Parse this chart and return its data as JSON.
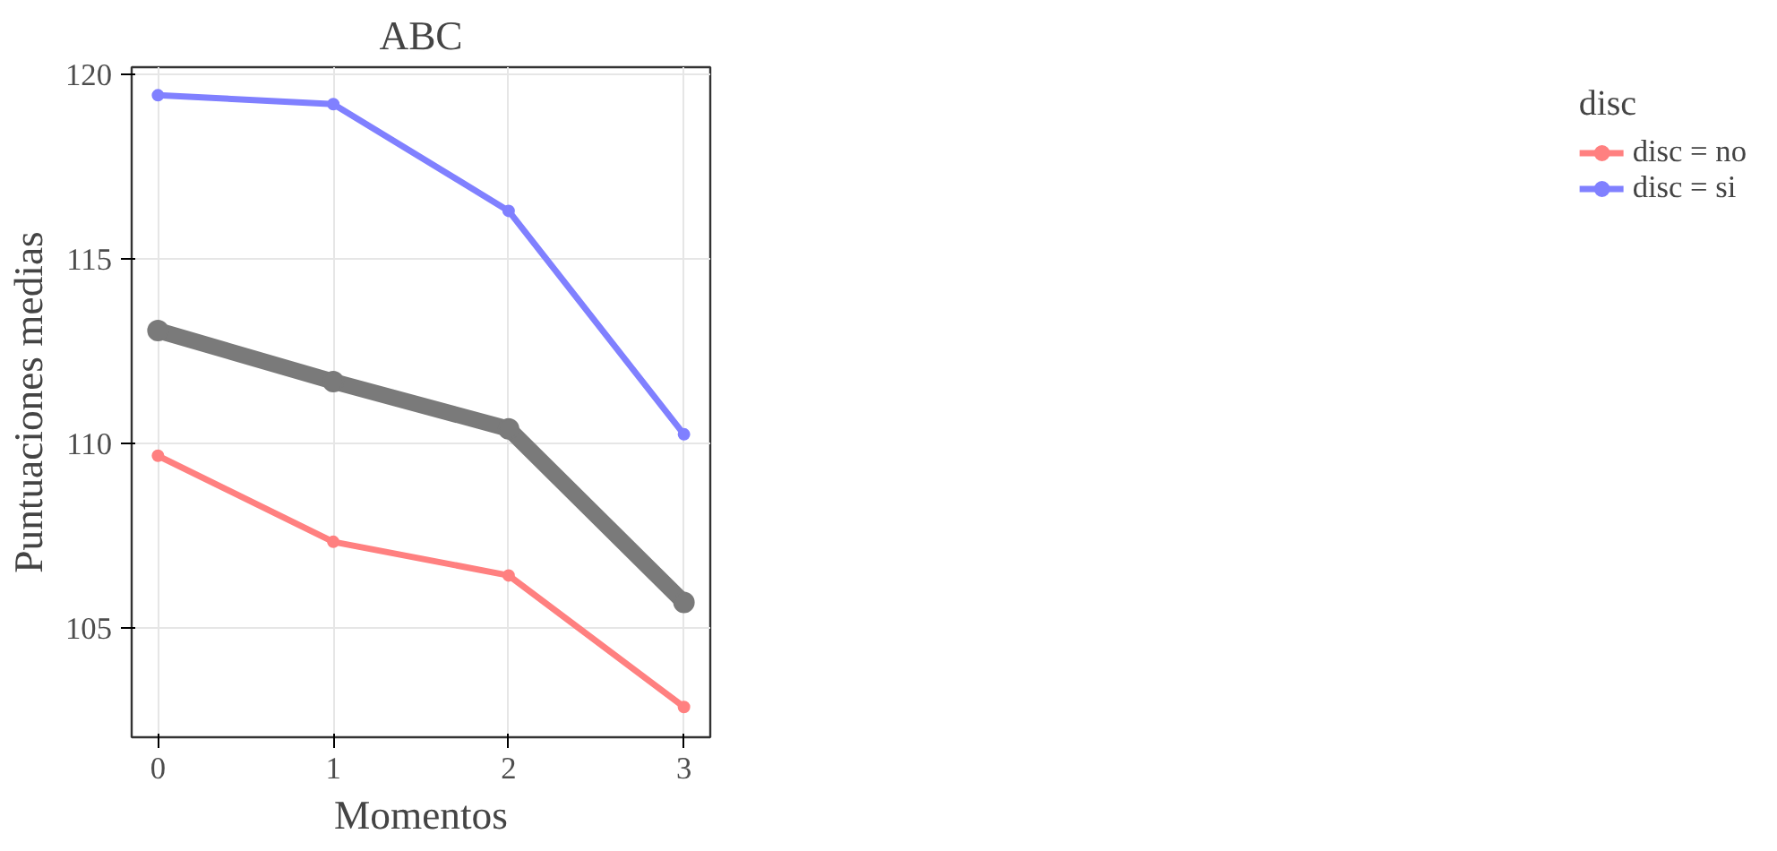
{
  "chart_data": {
    "type": "line",
    "title": "ABC",
    "xlabel": "Momentos",
    "ylabel": "Puntuaciones medias",
    "legend_title": "disc",
    "x": [
      0,
      1,
      2,
      3
    ],
    "series": [
      {
        "name": "disc = no",
        "color": "#ff8080",
        "values": [
          109.67,
          107.34,
          106.43,
          102.87
        ]
      },
      {
        "name": "disc = si",
        "color": "#8080ff",
        "values": [
          119.43,
          119.19,
          116.3,
          110.25
        ]
      },
      {
        "color": "#7a7a7a",
        "values": [
          113.06,
          111.68,
          110.4,
          105.7
        ]
      }
    ],
    "xlim": [
      -0.15,
      3.15
    ],
    "ylim": [
      102.05,
      120.19
    ],
    "xticks": [
      0,
      1,
      2,
      3
    ],
    "yticks": [
      105,
      110,
      115,
      120
    ],
    "grid": true,
    "legend": "right",
    "marker": "circle",
    "line_style": "solid"
  }
}
